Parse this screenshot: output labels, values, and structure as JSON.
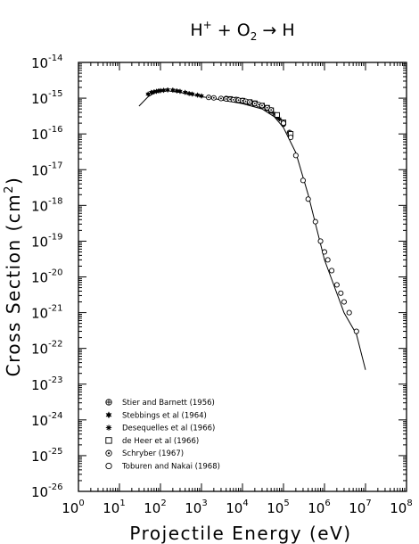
{
  "chart_data": {
    "type": "scatter",
    "title": {
      "pre": "H",
      "sup": "+",
      "mid": " + O",
      "sub": "2",
      "post": " → H"
    },
    "xlabel": "Projectile Energy (eV)",
    "ylabel": {
      "pre": "Cross Section (cm",
      "sup": "2",
      "post": ")"
    },
    "x_scale": "log",
    "y_scale": "log",
    "xlim": [
      1,
      100000000.0
    ],
    "ylim": [
      1e-26,
      1e-14
    ],
    "x_ticks": [
      {
        "base": "10",
        "exp": "0"
      },
      {
        "base": "10",
        "exp": "1"
      },
      {
        "base": "10",
        "exp": "2"
      },
      {
        "base": "10",
        "exp": "3"
      },
      {
        "base": "10",
        "exp": "4"
      },
      {
        "base": "10",
        "exp": "5"
      },
      {
        "base": "10",
        "exp": "6"
      },
      {
        "base": "10",
        "exp": "7"
      },
      {
        "base": "10",
        "exp": "8"
      }
    ],
    "y_ticks": [
      {
        "base": "10",
        "exp": "-26"
      },
      {
        "base": "10",
        "exp": "-25"
      },
      {
        "base": "10",
        "exp": "-24"
      },
      {
        "base": "10",
        "exp": "-23"
      },
      {
        "base": "10",
        "exp": "-22"
      },
      {
        "base": "10",
        "exp": "-21"
      },
      {
        "base": "10",
        "exp": "-20"
      },
      {
        "base": "10",
        "exp": "-19"
      },
      {
        "base": "10",
        "exp": "-18"
      },
      {
        "base": "10",
        "exp": "-17"
      },
      {
        "base": "10",
        "exp": "-16"
      },
      {
        "base": "10",
        "exp": "-15"
      },
      {
        "base": "10",
        "exp": "-14"
      }
    ],
    "legend_position": "bottom-left",
    "fit_curve": {
      "x": [
        30,
        50,
        80,
        150,
        300,
        600,
        1000,
        3000,
        10000,
        30000,
        60000,
        100000,
        200000,
        400000,
        1000000,
        3000000,
        6000000,
        10000000
      ],
      "y": [
        6e-16,
        1.1e-15,
        1.5e-15,
        1.6e-15,
        1.45e-15,
        1.25e-15,
        1.1e-15,
        9e-16,
        7e-16,
        5e-16,
        3e-16,
        1.5e-16,
        3e-17,
        2e-18,
        3e-20,
        1e-21,
        2.5e-22,
        2.5e-23
      ]
    },
    "series": [
      {
        "name": "Stier and Barnett (1956)",
        "marker": "crossed-circle",
        "x": [
          4000,
          7000,
          10000,
          15000,
          20000,
          30000,
          40000,
          50000,
          70000,
          100000,
          140000
        ],
        "y": [
          9.8e-16,
          9.2e-16,
          8.6e-16,
          7.6e-16,
          7.2e-16,
          6.1e-16,
          5.2e-16,
          4.5e-16,
          3.2e-16,
          1.9e-16,
          1.1e-16
        ]
      },
      {
        "name": "Stebbings et al (1964)",
        "marker": "filled-star",
        "x": [
          50,
          60,
          70,
          80,
          90,
          100,
          120,
          150,
          200,
          250,
          300,
          400,
          500,
          600,
          800,
          1000
        ],
        "y": [
          1.3e-15,
          1.45e-15,
          1.5e-15,
          1.55e-15,
          1.6e-15,
          1.62e-15,
          1.66e-15,
          1.7e-15,
          1.68e-15,
          1.6e-15,
          1.55e-15,
          1.45e-15,
          1.35e-15,
          1.3e-15,
          1.22e-15,
          1.15e-15
        ]
      },
      {
        "name": "Desequelles et al (1966)",
        "marker": "asterisk",
        "x": [
          20000,
          30000,
          40000,
          50000,
          60000,
          70000,
          80000,
          100000
        ],
        "y": [
          6.8e-16,
          5.8e-16,
          5e-16,
          4.2e-16,
          3.6e-16,
          3e-16,
          2.6e-16,
          1.8e-16
        ]
      },
      {
        "name": "de Heer et al (1966)",
        "marker": "open-square",
        "x": [
          5000,
          7000,
          10000,
          15000,
          20000,
          30000,
          40000,
          50000,
          70000,
          100000,
          150000
        ],
        "y": [
          9.5e-16,
          9e-16,
          8.5e-16,
          7.8e-16,
          7.2e-16,
          6.2e-16,
          5.4e-16,
          4.6e-16,
          3.4e-16,
          2.1e-16,
          1e-16
        ]
      },
      {
        "name": "Schryber (1967)",
        "marker": "dotted-circle",
        "x": [
          1500,
          2000,
          3000,
          4000,
          5000,
          6000,
          8000,
          10000,
          12000,
          15000,
          20000,
          25000,
          30000,
          40000,
          50000
        ],
        "y": [
          1.05e-15,
          1.02e-15,
          9.8e-16,
          9.5e-16,
          9.3e-16,
          9e-16,
          8.8e-16,
          8.5e-16,
          8.2e-16,
          7.8e-16,
          7.1e-16,
          6.6e-16,
          6.2e-16,
          5.4e-16,
          4.7e-16
        ]
      },
      {
        "name": "Toburen and Nakai (1968)",
        "marker": "open-circle",
        "x": [
          100000,
          150000,
          200000,
          300000,
          400000,
          600000,
          800000,
          1000000,
          1200000,
          1500000,
          2000000,
          2500000,
          3000000,
          4000000,
          6000000
        ],
        "y": [
          2e-16,
          8e-17,
          2.5e-17,
          5e-18,
          1.5e-18,
          3.5e-19,
          1e-19,
          5e-20,
          3e-20,
          1.5e-20,
          6e-21,
          3.5e-21,
          2e-21,
          1e-21,
          3e-22
        ]
      }
    ]
  }
}
